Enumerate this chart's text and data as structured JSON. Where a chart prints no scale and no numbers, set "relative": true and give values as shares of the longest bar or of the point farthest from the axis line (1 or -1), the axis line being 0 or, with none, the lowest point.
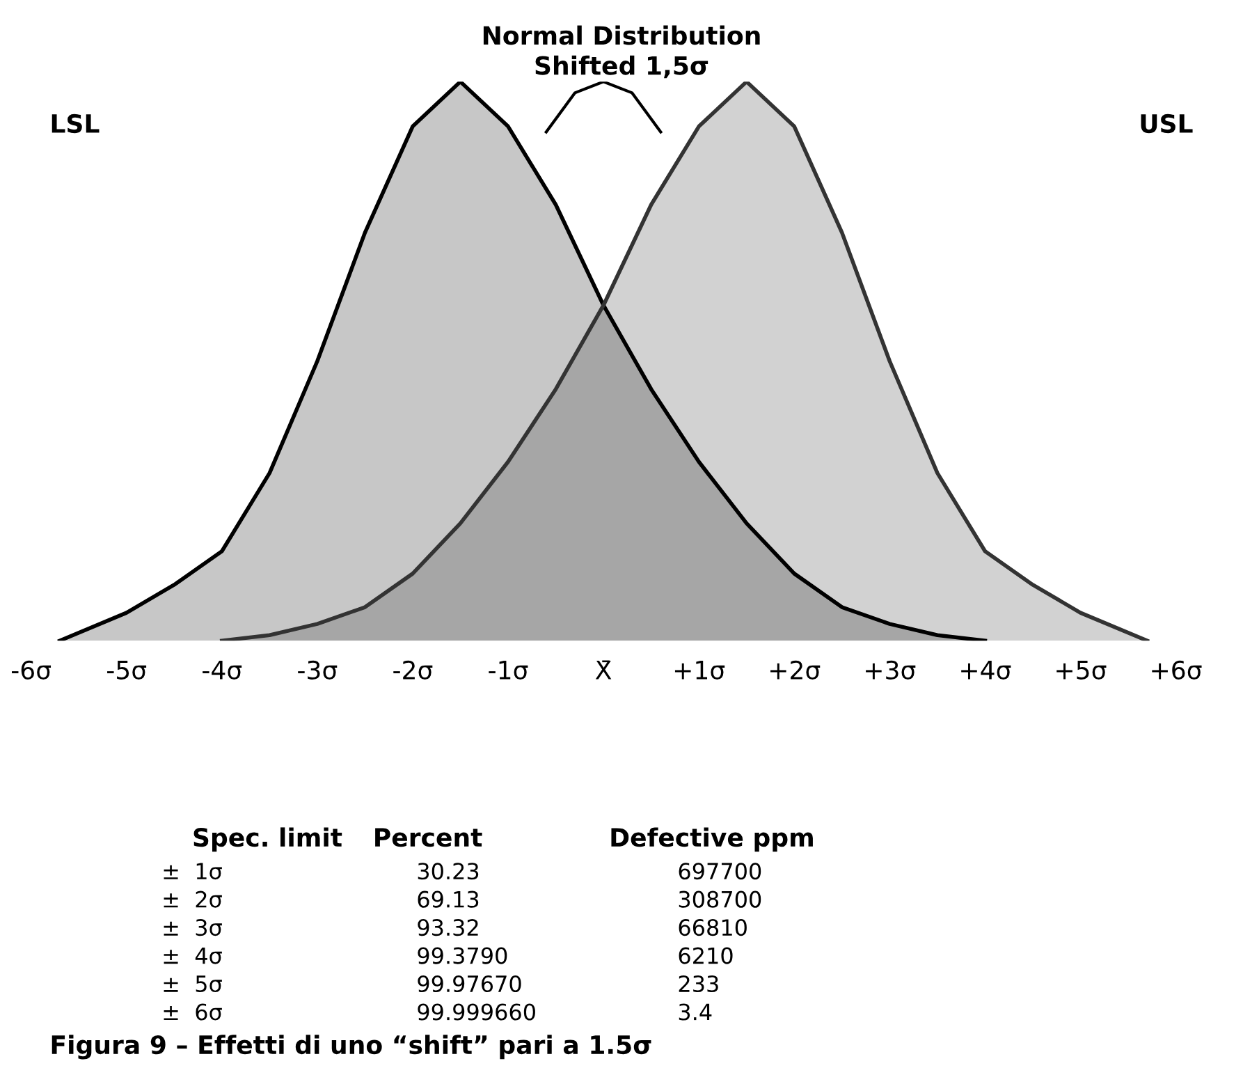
{
  "chart_data": [
    {
      "type": "area",
      "title": "Normal Distribution",
      "subtitle": "Shifted 1,5σ",
      "relative": true,
      "xlim": [
        -6,
        6
      ],
      "xticks": [
        {
          "value": -6,
          "label": "-6σ"
        },
        {
          "value": -5,
          "label": "-5σ"
        },
        {
          "value": -4,
          "label": "-4σ"
        },
        {
          "value": -3,
          "label": "-3σ"
        },
        {
          "value": -2,
          "label": "-2σ"
        },
        {
          "value": -1,
          "label": "-1σ"
        },
        {
          "value": 0,
          "label": "X̄"
        },
        {
          "value": 1,
          "label": "+1σ"
        },
        {
          "value": 2,
          "label": "+2σ"
        },
        {
          "value": 3,
          "label": "+3σ"
        },
        {
          "value": 4,
          "label": "+4σ"
        },
        {
          "value": 5,
          "label": "+5σ"
        },
        {
          "value": 6,
          "label": "+6σ"
        }
      ],
      "grid": false,
      "legend": false,
      "tick_labels": "x",
      "series": [
        {
          "type": "area",
          "color": "#000000",
          "x": [
            -5.7,
            -5,
            -4.5,
            -4,
            -3.5,
            -3,
            -2.5,
            -2,
            -1.5,
            -1,
            -0.5,
            0,
            0.5,
            1,
            1.5,
            2,
            2.5,
            3,
            3.5,
            4
          ],
          "values": [
            0,
            0.05,
            0.1,
            0.16,
            0.3,
            0.5,
            0.73,
            0.92,
            1,
            0.92,
            0.78,
            0.6,
            0.45,
            0.32,
            0.21,
            0.12,
            0.06,
            0.03,
            0.01,
            0
          ]
        },
        {
          "type": "line",
          "color": "#000000",
          "x": [
            -0.6,
            -0.3,
            0,
            0.3,
            0.6
          ],
          "values": [
            0.91,
            0.98,
            1,
            0.98,
            0.91
          ]
        },
        {
          "type": "area",
          "color": "#333333",
          "x": [
            -4,
            -3.5,
            -3,
            -2.5,
            -2,
            -1.5,
            -1,
            -0.5,
            0,
            0.5,
            1,
            1.5,
            2,
            2.5,
            3,
            3.5,
            4,
            4.5,
            5,
            5.7
          ],
          "values": [
            0,
            0.01,
            0.03,
            0.06,
            0.12,
            0.21,
            0.32,
            0.45,
            0.6,
            0.78,
            0.92,
            1,
            0.92,
            0.73,
            0.5,
            0.3,
            0.16,
            0.1,
            0.05,
            0
          ]
        }
      ],
      "annotations": [
        "LSL",
        "USL",
        "Figura 9 – Effetti di uno “shift” pari a 1.5σ",
        "Spec. limit",
        "Percent",
        "Defective ppm",
        "±  1σ",
        "30.23",
        "697700",
        "±  2σ",
        "69.13",
        "308700",
        "±  3σ",
        "93.32",
        "66810",
        "±  4σ",
        "99.3790",
        "6210",
        "±  5σ",
        "99.97670",
        "233",
        "±  6σ",
        "99.999660",
        "3.4"
      ]
    }
  ]
}
